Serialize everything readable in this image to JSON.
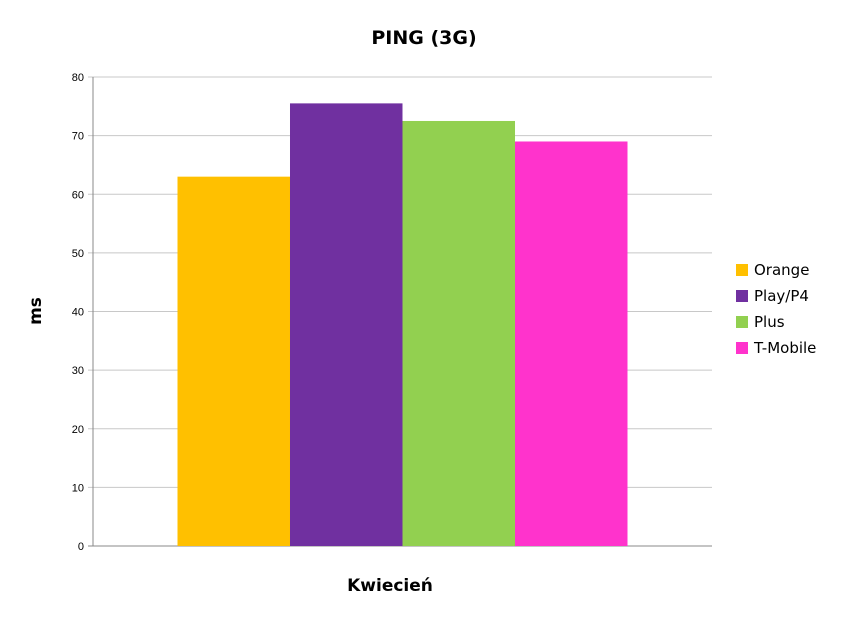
{
  "chart_data": {
    "type": "bar",
    "title": "PING (3G)",
    "xlabel": "Kwiecień",
    "ylabel": "ms",
    "categories": [
      "Kwiecień"
    ],
    "ylim": [
      0,
      80
    ],
    "yticks": [
      0,
      10,
      20,
      30,
      40,
      50,
      60,
      70,
      80
    ],
    "grid": true,
    "legend_position": "right",
    "series": [
      {
        "name": "Orange",
        "values": [
          63
        ],
        "color": "#FFC000"
      },
      {
        "name": "Play/P4",
        "values": [
          75.5
        ],
        "color": "#7030A0"
      },
      {
        "name": "Plus",
        "values": [
          72.5
        ],
        "color": "#92D050"
      },
      {
        "name": "T-Mobile",
        "values": [
          69
        ],
        "color": "#FF33CC"
      }
    ]
  }
}
